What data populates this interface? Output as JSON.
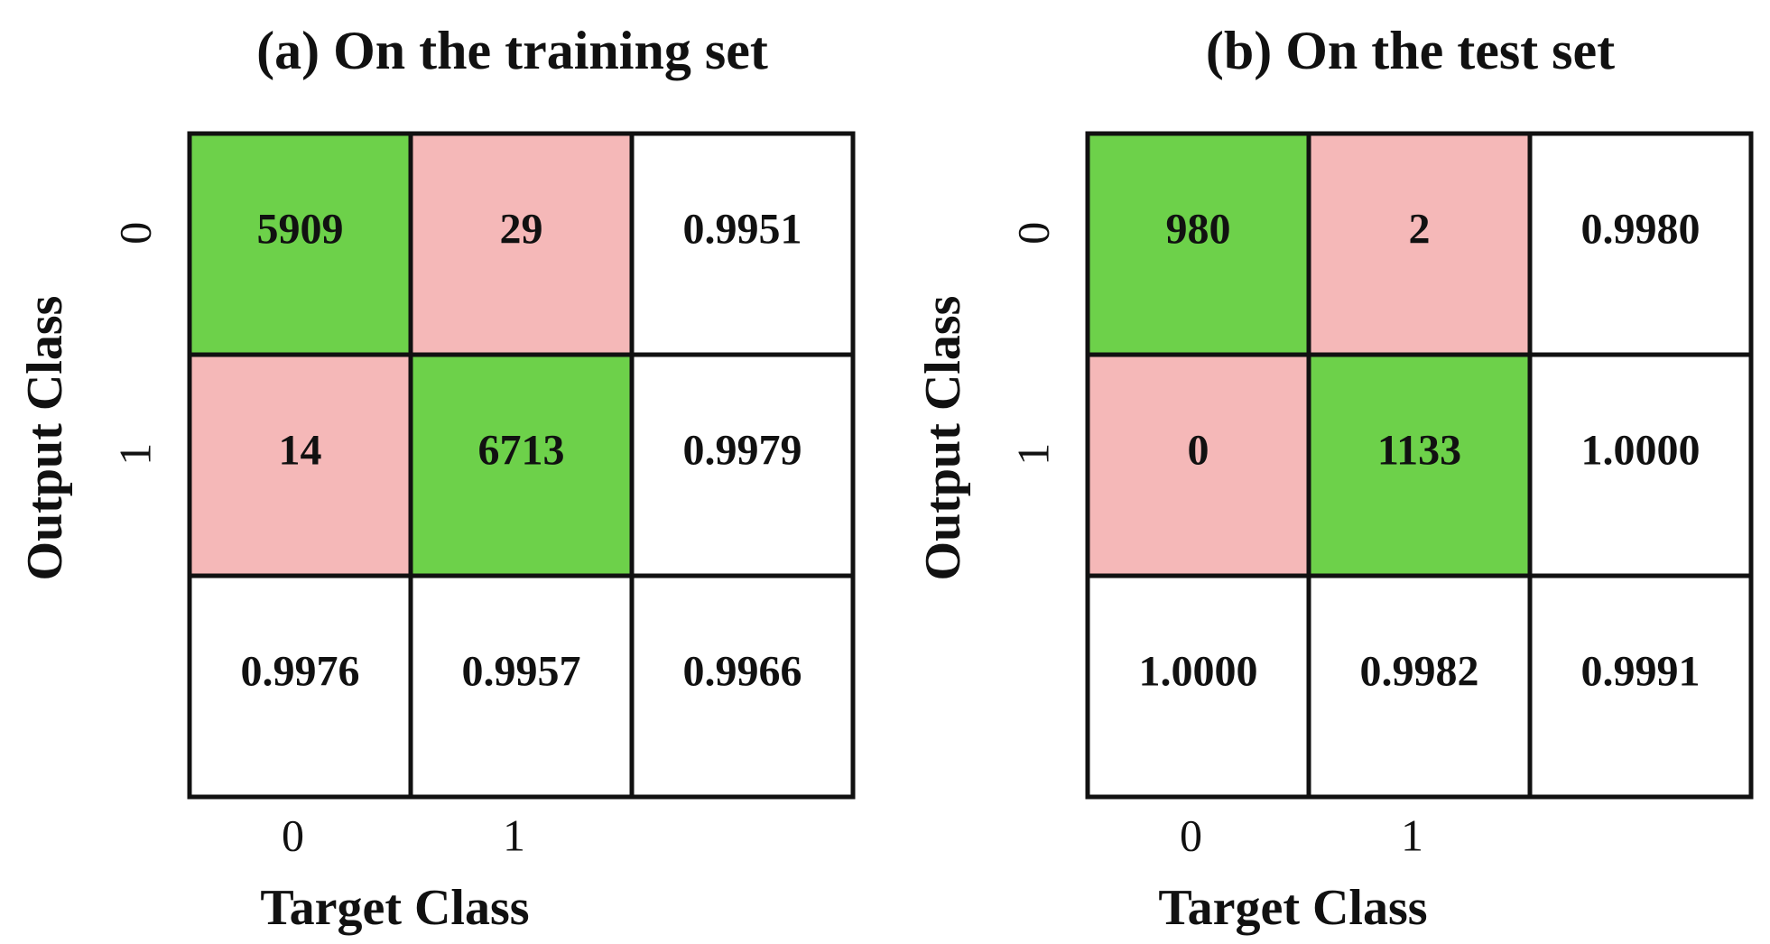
{
  "chart_data": [
    {
      "type": "confusion_matrix",
      "title": "(a) On the training set",
      "xlabel": "Target Class",
      "ylabel": "Output Class",
      "categories": [
        "0",
        "1"
      ],
      "values": [
        [
          5909,
          29,
          0.9951
        ],
        [
          14,
          6713,
          0.9979
        ],
        [
          0.9976,
          0.9957,
          0.9966
        ]
      ],
      "value_labels": [
        [
          "5909",
          "29",
          "0.9951"
        ],
        [
          "14",
          "6713",
          "0.9979"
        ],
        [
          "0.9976",
          "0.9957",
          "0.9966"
        ]
      ],
      "colors": {
        "correct": "#6dd14a",
        "incorrect": "#f5b8b8",
        "summary": "#ffffff"
      }
    },
    {
      "type": "confusion_matrix",
      "title": "(b) On the test set",
      "xlabel": "Target Class",
      "ylabel": "Output Class",
      "categories": [
        "0",
        "1"
      ],
      "values": [
        [
          980,
          2,
          0.998
        ],
        [
          0,
          1133,
          1.0
        ],
        [
          1.0,
          0.9982,
          0.9991
        ]
      ],
      "value_labels": [
        [
          "980",
          "2",
          "0.9980"
        ],
        [
          "0",
          "1133",
          "1.0000"
        ],
        [
          "1.0000",
          "0.9982",
          "0.9991"
        ]
      ],
      "colors": {
        "correct": "#6dd14a",
        "incorrect": "#f5b8b8",
        "summary": "#ffffff"
      }
    }
  ]
}
